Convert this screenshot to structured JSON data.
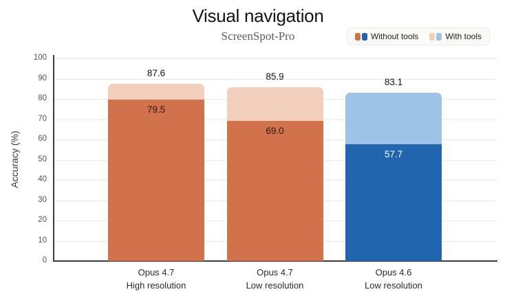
{
  "title": "Visual navigation",
  "subtitle": "ScreenSpot-Pro",
  "legend": {
    "items": [
      {
        "label": "Without tools",
        "swatches": [
          "#D1724C",
          "#2065AE"
        ]
      },
      {
        "label": "With tools",
        "swatches": [
          "#F2CEBD",
          "#9EC3E6"
        ]
      }
    ]
  },
  "chart_data": {
    "type": "bar",
    "title": "Visual navigation",
    "subtitle": "ScreenSpot-Pro",
    "xlabel": "",
    "ylabel": "Accuracy (%)",
    "ylim": [
      0,
      100
    ],
    "yticks": [
      0,
      10,
      20,
      30,
      40,
      50,
      60,
      70,
      80,
      90,
      100
    ],
    "grid": true,
    "legend_position": "top-right",
    "categories": [
      "Opus 4.7 High resolution",
      "Opus 4.7 Low resolution",
      "Opus 4.6 Low resolution"
    ],
    "category_lines": [
      [
        "Opus 4.7",
        "High resolution"
      ],
      [
        "Opus 4.7",
        "Low resolution"
      ],
      [
        "Opus 4.6",
        "Low resolution"
      ]
    ],
    "series": [
      {
        "name": "Without tools",
        "values": [
          79.5,
          69.0,
          57.7
        ],
        "value_labels": [
          "79.5",
          "69.0",
          "57.7"
        ],
        "bar_colors": [
          "#D1724C",
          "#D1724C",
          "#2065AE"
        ],
        "value_label_colors": [
          "#2B1A12",
          "#2B1A12",
          "#FFFFFF"
        ],
        "label_placement": "inside-top"
      },
      {
        "name": "With tools",
        "values": [
          87.6,
          85.9,
          83.1
        ],
        "value_labels": [
          "87.6",
          "85.9",
          "83.1"
        ],
        "bar_colors": [
          "#F2CEBD",
          "#F2CEBD",
          "#9EC3E6"
        ],
        "value_label_colors": [
          "#141413",
          "#141413",
          "#141413"
        ],
        "label_placement": "above"
      }
    ]
  },
  "colors": {
    "background": "#FFFFFF",
    "grid": "#EBE9E4",
    "spine": "#3B3A37",
    "tick_text": "#55534E",
    "legend_bg": "#FBFAF6",
    "legend_border": "#ECEAE2",
    "orange": "#D1724C",
    "peach": "#F2CEBD",
    "dark_blue": "#2065AE",
    "light_blue": "#9EC3E6"
  }
}
